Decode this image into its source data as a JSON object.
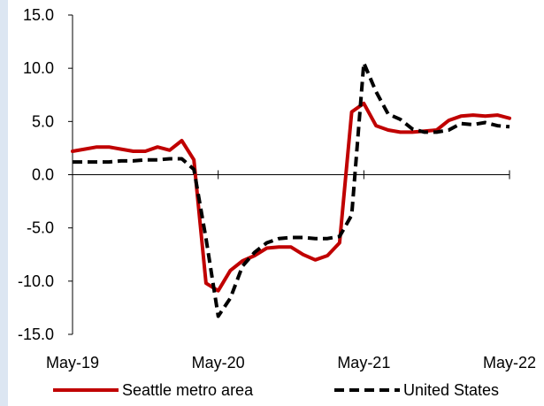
{
  "chart_data": {
    "type": "line",
    "title": "",
    "xlabel": "",
    "ylabel": "",
    "ylim": [
      -15,
      15
    ],
    "yticks": [
      "15.0",
      "10.0",
      "5.0",
      "0.0",
      "-5.0",
      "-10.0",
      "-15.0"
    ],
    "ytick_values": [
      15,
      10,
      5,
      0,
      -5,
      -10,
      -15
    ],
    "xticks": [
      "May-19",
      "May-20",
      "May-21",
      "May-22"
    ],
    "xtick_positions": [
      0,
      12,
      24,
      36
    ],
    "grid": false,
    "legend_position": "bottom",
    "series": [
      {
        "name": "Seattle metro area",
        "color": "#c00000",
        "style": "solid",
        "values": [
          2.2,
          2.4,
          2.6,
          2.6,
          2.4,
          2.2,
          2.2,
          2.6,
          2.3,
          3.2,
          1.4,
          -10.2,
          -10.9,
          -9.0,
          -8.1,
          -7.6,
          -6.9,
          -6.8,
          -6.8,
          -7.5,
          -8.0,
          -7.6,
          -6.4,
          5.9,
          6.7,
          4.6,
          4.2,
          4.0,
          4.0,
          4.1,
          4.2,
          5.1,
          5.5,
          5.6,
          5.5,
          5.6,
          5.3
        ]
      },
      {
        "name": "United States",
        "color": "#000000",
        "style": "dashed",
        "values": [
          1.2,
          1.2,
          1.2,
          1.2,
          1.3,
          1.3,
          1.4,
          1.4,
          1.5,
          1.5,
          0.5,
          -6.0,
          -13.3,
          -11.6,
          -8.6,
          -7.3,
          -6.4,
          -6.0,
          -5.9,
          -5.9,
          -6.0,
          -6.0,
          -5.8,
          -3.8,
          10.5,
          7.8,
          5.7,
          5.2,
          4.3,
          4.0,
          4.0,
          4.2,
          4.8,
          4.7,
          4.9,
          4.6,
          4.5
        ]
      }
    ]
  }
}
